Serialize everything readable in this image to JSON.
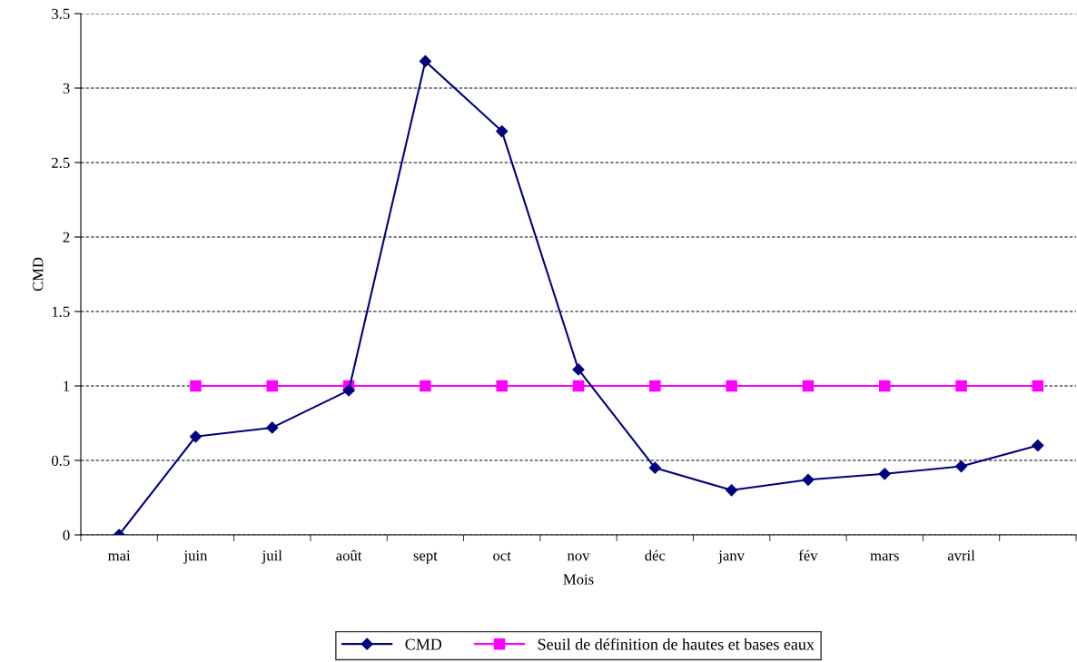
{
  "chart_data": {
    "type": "line",
    "xlabel": "Mois",
    "ylabel": "CMD",
    "categories": [
      "mai",
      "juin",
      "juil",
      "août",
      "sept",
      "oct",
      "nov",
      "déc",
      "janv",
      "fév",
      "mars",
      "avril",
      null
    ],
    "series": [
      {
        "name": "CMD",
        "color": "#000080",
        "marker": "diamond",
        "values": [
          0,
          0.66,
          0.72,
          0.97,
          3.18,
          2.71,
          1.11,
          0.45,
          0.3,
          0.37,
          0.41,
          0.46,
          0.6
        ]
      },
      {
        "name": "Seuil de définition de hautes et bases eaux",
        "color": "#ff00ff",
        "marker": "square",
        "values": [
          null,
          1,
          1,
          1,
          1,
          1,
          1,
          1,
          1,
          1,
          1,
          1,
          1
        ]
      }
    ],
    "ylim": [
      0,
      3.5
    ],
    "yticks": [
      0,
      0.5,
      1,
      {
        "value": 1.5,
        "label": "1.5"
      },
      2,
      {
        "value": 2.5,
        "label": "2.5"
      },
      3,
      {
        "value": 3.5,
        "label": "3.5"
      }
    ],
    "grid": "y",
    "legend": "bottom",
    "line_style": "solid"
  }
}
